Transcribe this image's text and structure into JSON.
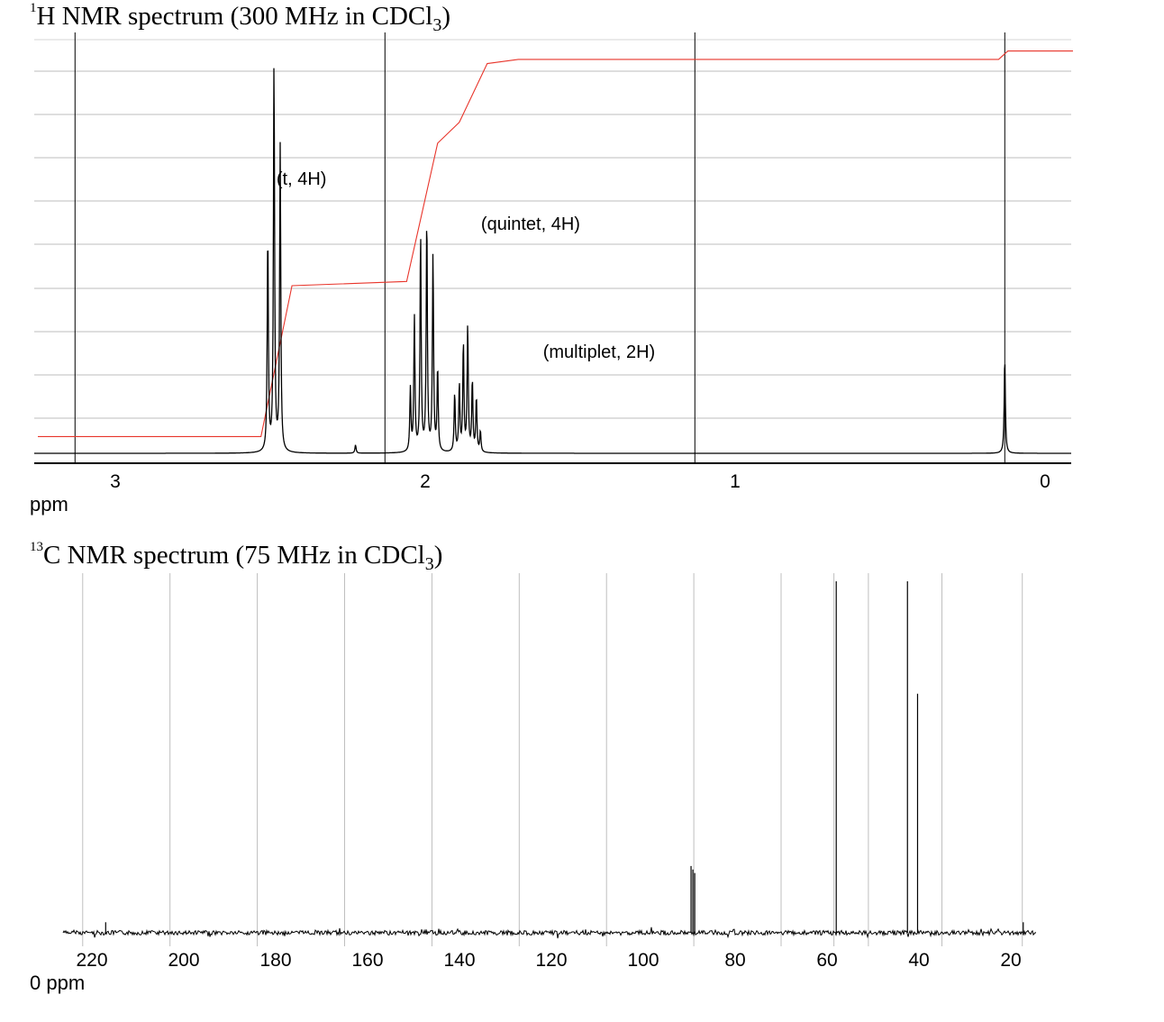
{
  "chart_data": [
    {
      "type": "line",
      "title": "NMR spectrum (300 MHz in CDCl",
      "title_nucleus": "1",
      "title_element": "H",
      "title_subscript": "3",
      "title_close": ")",
      "xlabel": "ppm",
      "x_reversed": true,
      "xlim": [
        3.25,
        0
      ],
      "ticks": [
        "3",
        "2",
        "1",
        "0"
      ],
      "tick_values": [
        3,
        2,
        1,
        0
      ],
      "grid": "horizontal lines and vertical lines at 3.13, 2.13, 1.13, 0.13 ppm",
      "annotations": [
        {
          "text": "(t, 4H)",
          "x": 2.48
        },
        {
          "text": "(quintet, 4H)",
          "x": 1.82
        },
        {
          "text": "(multiplet, 2H)",
          "x": 1.62
        }
      ],
      "series": [
        {
          "kind": "spectrum",
          "color": "#000000",
          "peaks": [
            {
              "x": 2.508,
              "y": 0.52
            },
            {
              "x": 2.488,
              "y": 0.93
            },
            {
              "x": 2.468,
              "y": 0.73
            },
            {
              "x": 2.225,
              "y": 0.02
            },
            {
              "x": 2.048,
              "y": 0.15
            },
            {
              "x": 2.035,
              "y": 0.32
            },
            {
              "x": 2.015,
              "y": 0.52
            },
            {
              "x": 1.995,
              "y": 0.56
            },
            {
              "x": 1.975,
              "y": 0.47
            },
            {
              "x": 1.96,
              "y": 0.2
            },
            {
              "x": 1.905,
              "y": 0.14
            },
            {
              "x": 1.89,
              "y": 0.16
            },
            {
              "x": 1.877,
              "y": 0.26
            },
            {
              "x": 1.863,
              "y": 0.3
            },
            {
              "x": 1.848,
              "y": 0.17
            },
            {
              "x": 1.835,
              "y": 0.13
            },
            {
              "x": 1.822,
              "y": 0.05
            },
            {
              "x": 0.13,
              "y": 0.23
            }
          ]
        },
        {
          "kind": "integral",
          "color": "#e8352b",
          "points": [
            {
              "x": 3.25,
              "y": 0.04
            },
            {
              "x": 2.53,
              "y": 0.04
            },
            {
              "x": 2.43,
              "y": 0.4
            },
            {
              "x": 2.06,
              "y": 0.41
            },
            {
              "x": 1.96,
              "y": 0.74
            },
            {
              "x": 1.89,
              "y": 0.79
            },
            {
              "x": 1.8,
              "y": 0.93
            },
            {
              "x": 1.7,
              "y": 0.94
            },
            {
              "x": 0.15,
              "y": 0.94
            },
            {
              "x": 0.12,
              "y": 0.96
            },
            {
              "x": -0.09,
              "y": 0.96
            }
          ]
        }
      ]
    },
    {
      "type": "line",
      "title": "C NMR spectrum (75 MHz in CDCl",
      "title_nucleus": "13",
      "title_subscript": "3",
      "title_close": ")",
      "xlabel": "0 ppm",
      "x_reversed": true,
      "xlim": [
        228,
        14
      ],
      "ticks": [
        "220",
        "200",
        "180",
        "160",
        "140",
        "120",
        "100",
        "80",
        "60",
        "40",
        "20"
      ],
      "tick_values": [
        220,
        200,
        180,
        160,
        140,
        120,
        100,
        80,
        60,
        40,
        20
      ],
      "grid": "vertical gray lines",
      "series": [
        {
          "kind": "spectrum",
          "color": "#000000",
          "peaks": [
            {
              "x": 217.0,
              "y": 0.03
            },
            {
              "x": 89.6,
              "y": 0.19
            },
            {
              "x": 89.2,
              "y": 0.18
            },
            {
              "x": 88.8,
              "y": 0.17
            },
            {
              "x": 58.0,
              "y": 1.0
            },
            {
              "x": 42.5,
              "y": 1.0
            },
            {
              "x": 40.3,
              "y": 0.68
            },
            {
              "x": 17.3,
              "y": 0.03
            }
          ]
        }
      ]
    }
  ]
}
